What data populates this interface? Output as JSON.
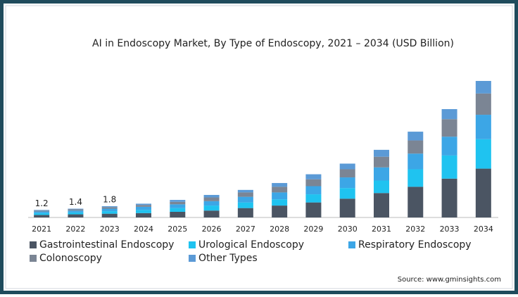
{
  "chart_data": {
    "type": "stacked_bar",
    "title": "AI in Endoscopy Market, By Type of Endoscopy, 2021 – 2034 (USD Billion)",
    "categories": [
      "2021",
      "2022",
      "2023",
      "2024",
      "2025",
      "2026",
      "2027",
      "2028",
      "2029",
      "2030",
      "2031",
      "2032",
      "2033",
      "2034"
    ],
    "series": [
      {
        "name": "Gastrointestinal Endoscopy",
        "color": "#4b5563",
        "values": [
          0.4,
          0.5,
          0.6,
          0.7,
          0.9,
          1.1,
          1.5,
          1.9,
          2.4,
          3.0,
          3.9,
          4.9,
          6.2,
          7.8
        ]
      },
      {
        "name": "Urological Endoscopy",
        "color": "#1fc3f0",
        "values": [
          0.3,
          0.3,
          0.4,
          0.5,
          0.6,
          0.8,
          0.9,
          1.0,
          1.3,
          1.7,
          2.0,
          2.8,
          3.7,
          4.7
        ]
      },
      {
        "name": "Respiratory Endoscopy",
        "color": "#3ca6e6",
        "values": [
          0.25,
          0.3,
          0.4,
          0.5,
          0.6,
          0.7,
          0.9,
          1.1,
          1.3,
          1.7,
          2.1,
          2.5,
          3.0,
          3.9
        ]
      },
      {
        "name": "Colonoscopy",
        "color": "#7b8594",
        "values": [
          0.15,
          0.2,
          0.25,
          0.3,
          0.4,
          0.6,
          0.7,
          0.9,
          1.1,
          1.3,
          1.7,
          2.1,
          2.8,
          3.4
        ]
      },
      {
        "name": "Other Types",
        "color": "#5b9ad6",
        "values": [
          0.1,
          0.1,
          0.15,
          0.2,
          0.3,
          0.4,
          0.4,
          0.6,
          0.8,
          0.9,
          1.1,
          1.4,
          1.6,
          2.0
        ]
      }
    ],
    "totals": [
      1.2,
      1.4,
      1.8
    ],
    "legend": "bottom",
    "source": "Source: www.gminsights.com"
  }
}
